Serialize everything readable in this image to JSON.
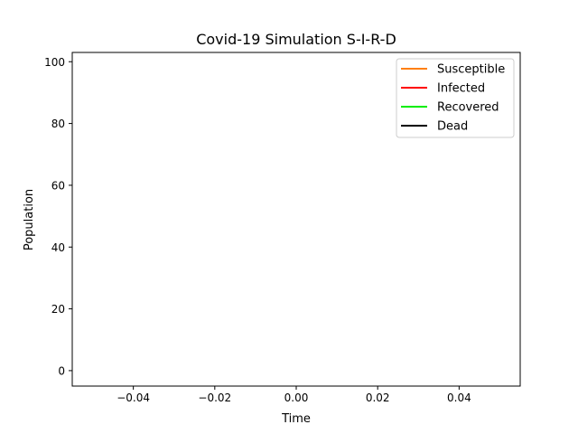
{
  "chart_data": {
    "type": "line",
    "title": "Covid-19 Simulation S-I-R-D",
    "xlabel": "Time",
    "ylabel": "Population",
    "xlim": [
      -0.055,
      0.055
    ],
    "ylim": [
      -5,
      103
    ],
    "x_ticks": [
      -0.04,
      -0.02,
      0.0,
      0.02,
      0.04
    ],
    "x_tick_labels": [
      "−0.04",
      "−0.02",
      "0.00",
      "0.02",
      "0.04"
    ],
    "y_ticks": [
      0,
      20,
      40,
      60,
      80,
      100
    ],
    "y_tick_labels": [
      "0",
      "20",
      "40",
      "60",
      "80",
      "100"
    ],
    "grid": false,
    "legend_position": "top-right",
    "series": [
      {
        "name": "Susceptible",
        "color": "#ff7f0e",
        "x": [],
        "y": []
      },
      {
        "name": "Infected",
        "color": "#ff0000",
        "x": [],
        "y": []
      },
      {
        "name": "Recovered",
        "color": "#00ee00",
        "x": [],
        "y": []
      },
      {
        "name": "Dead",
        "color": "#000000",
        "x": [],
        "y": []
      }
    ]
  }
}
